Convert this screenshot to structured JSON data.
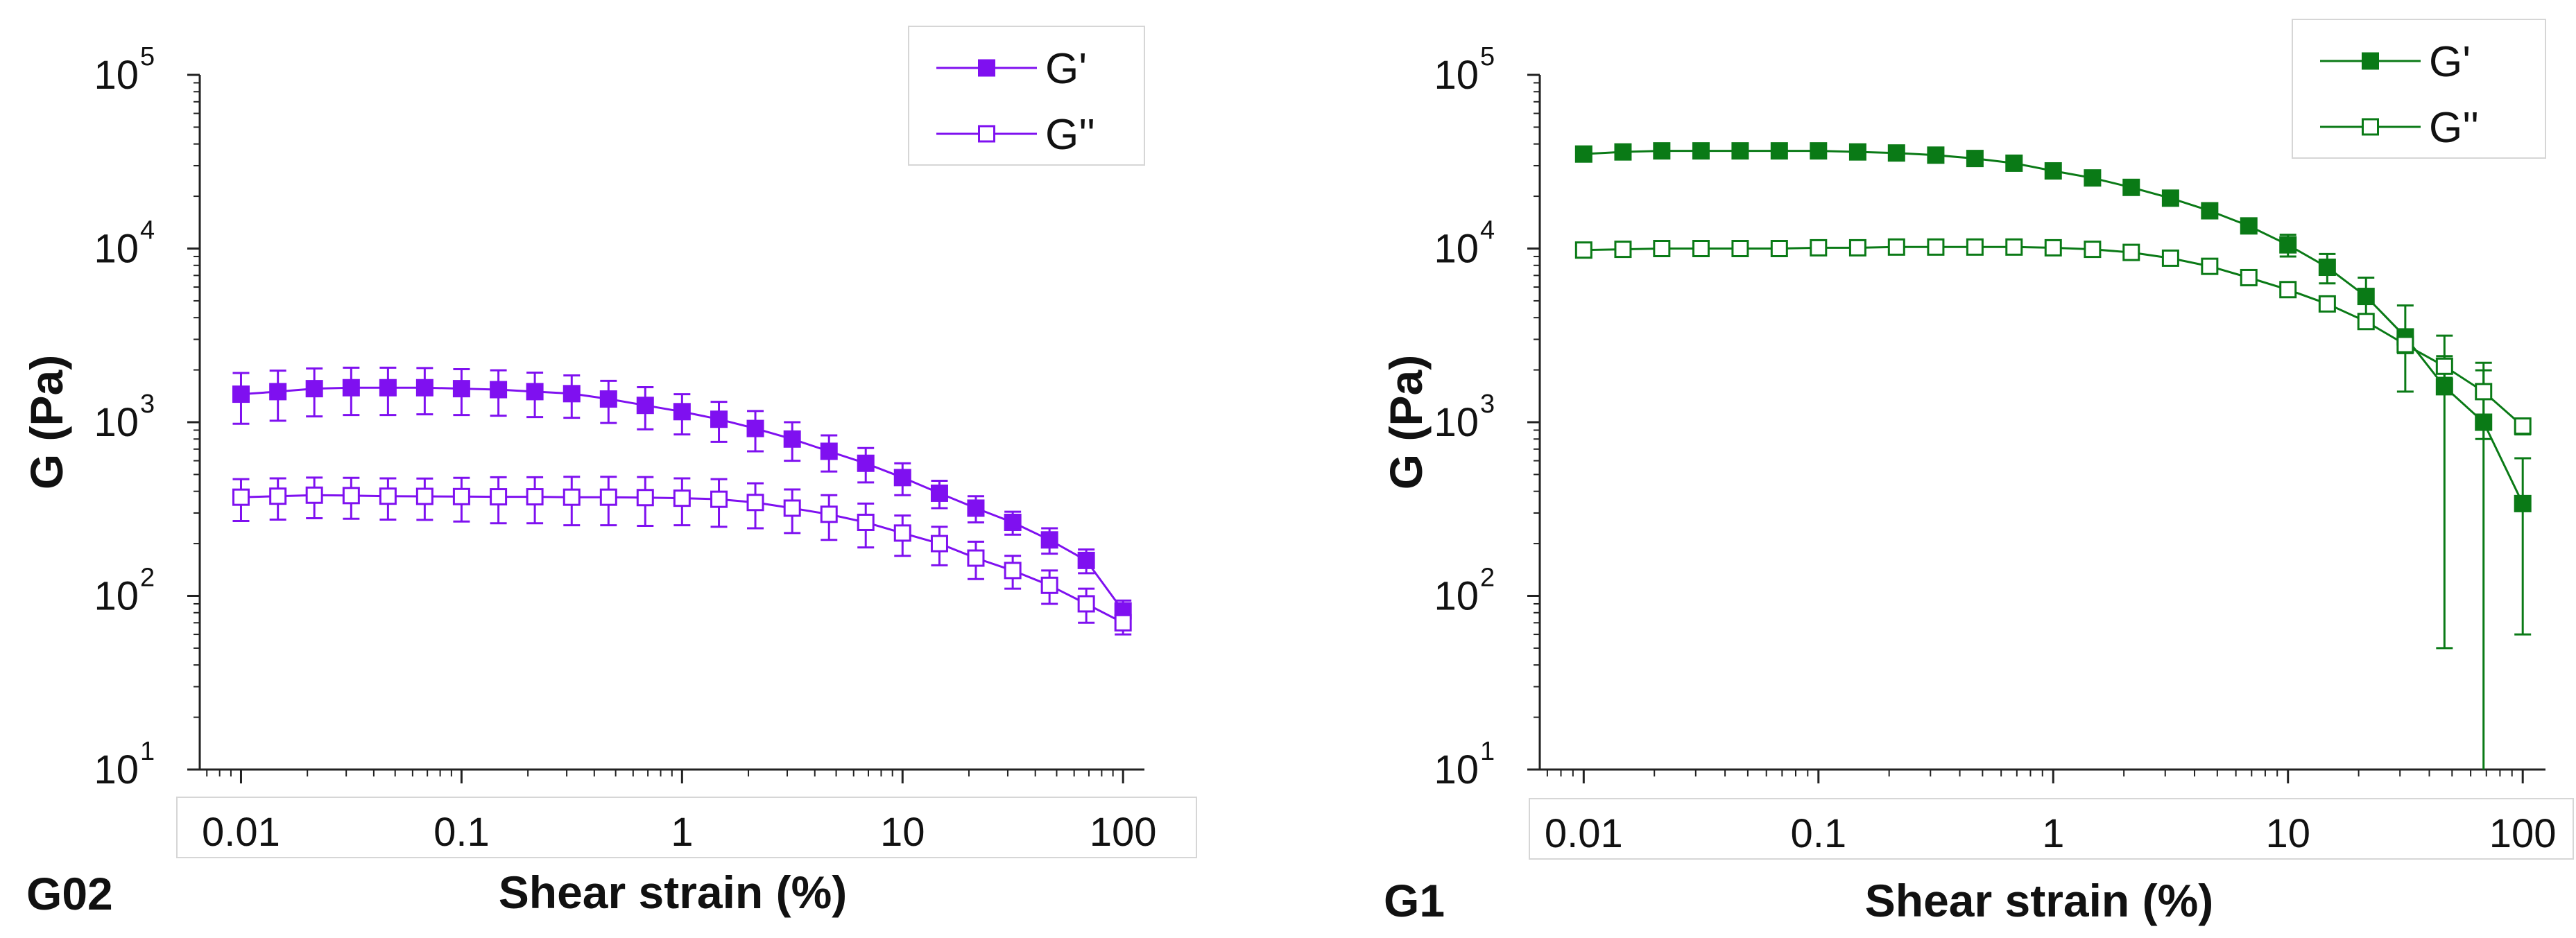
{
  "chart_data": [
    {
      "type": "line",
      "panel_label": "G02",
      "xlabel": "Shear strain (%)",
      "ylabel": "G (Pa)",
      "xscale": "log",
      "yscale": "log",
      "xlim": [
        0.0065,
        125
      ],
      "ylim": [
        10,
        100000
      ],
      "color": "#7f10f0",
      "x_ticks": [
        {
          "value": 0.01,
          "label": "0.01"
        },
        {
          "value": 0.1,
          "label": "0.1"
        },
        {
          "value": 1,
          "label": "1"
        },
        {
          "value": 10,
          "label": "10"
        },
        {
          "value": 100,
          "label": "100"
        }
      ],
      "y_ticks": [
        {
          "value": 10,
          "base": "10",
          "exp": "1"
        },
        {
          "value": 100,
          "base": "10",
          "exp": "2"
        },
        {
          "value": 1000,
          "base": "10",
          "exp": "3"
        },
        {
          "value": 10000,
          "base": "10",
          "exp": "4"
        },
        {
          "value": 100000,
          "base": "10",
          "exp": "5"
        }
      ],
      "legend_position": "top-right",
      "x": [
        0.01,
        0.0147,
        0.0215,
        0.0316,
        0.0464,
        0.0681,
        0.1,
        0.147,
        0.215,
        0.316,
        0.464,
        0.681,
        1,
        1.47,
        2.15,
        3.16,
        4.64,
        6.81,
        10,
        14.7,
        21.5,
        31.6,
        46.4,
        68.1,
        100
      ],
      "series": [
        {
          "name": "G'",
          "marker": "filled-square",
          "values": [
            1450,
            1500,
            1560,
            1580,
            1580,
            1580,
            1560,
            1540,
            1500,
            1460,
            1360,
            1250,
            1150,
            1040,
            920,
            800,
            680,
            580,
            480,
            390,
            320,
            265,
            210,
            160,
            82
          ],
          "err": [
            470,
            480,
            480,
            480,
            480,
            470,
            460,
            450,
            430,
            400,
            370,
            340,
            300,
            270,
            240,
            200,
            160,
            130,
            100,
            70,
            55,
            40,
            35,
            25,
            12
          ]
        },
        {
          "name": "G''",
          "marker": "open-square",
          "values": [
            370,
            375,
            380,
            378,
            375,
            374,
            373,
            372,
            372,
            370,
            370,
            368,
            365,
            360,
            345,
            320,
            295,
            265,
            230,
            200,
            165,
            140,
            115,
            90,
            70
          ],
          "err": [
            100,
            100,
            100,
            100,
            100,
            100,
            105,
            110,
            110,
            115,
            115,
            115,
            110,
            110,
            100,
            90,
            85,
            75,
            60,
            50,
            40,
            30,
            25,
            20,
            10
          ]
        }
      ]
    },
    {
      "type": "line",
      "panel_label": "G1",
      "xlabel": "Shear strain (%)",
      "ylabel": "G (Pa)",
      "xscale": "log",
      "yscale": "log",
      "xlim": [
        0.0065,
        125
      ],
      "ylim": [
        10,
        100000
      ],
      "color": "#0a7a16",
      "x_ticks": [
        {
          "value": 0.01,
          "label": "0.01"
        },
        {
          "value": 0.1,
          "label": "0.1"
        },
        {
          "value": 1,
          "label": "1"
        },
        {
          "value": 10,
          "label": "10"
        },
        {
          "value": 100,
          "label": "100"
        }
      ],
      "y_ticks": [
        {
          "value": 10,
          "base": "10",
          "exp": "1"
        },
        {
          "value": 100,
          "base": "10",
          "exp": "2"
        },
        {
          "value": 1000,
          "base": "10",
          "exp": "3"
        },
        {
          "value": 10000,
          "base": "10",
          "exp": "4"
        },
        {
          "value": 100000,
          "base": "10",
          "exp": "5"
        }
      ],
      "legend_position": "top-right",
      "x": [
        0.01,
        0.0147,
        0.0215,
        0.0316,
        0.0464,
        0.0681,
        0.1,
        0.147,
        0.215,
        0.316,
        0.464,
        0.681,
        1,
        1.47,
        2.15,
        3.16,
        4.64,
        6.81,
        10,
        14.7,
        21.5,
        31.6,
        46.4,
        68.1,
        100
      ],
      "series": [
        {
          "name": "G'",
          "marker": "filled-square",
          "values": [
            35000,
            36000,
            36500,
            36500,
            36500,
            36500,
            36500,
            36000,
            35500,
            34500,
            33000,
            31000,
            28000,
            25500,
            22500,
            19500,
            16500,
            13500,
            10500,
            7800,
            5300,
            3100,
            1600,
            1000,
            340
          ],
          "err": [
            1200,
            1200,
            1200,
            1200,
            1200,
            1200,
            1200,
            1200,
            1200,
            1200,
            1200,
            1200,
            1200,
            1200,
            1200,
            1100,
            1000,
            1000,
            1500,
            1500,
            1500,
            1600,
            1550,
            990,
            280
          ]
        },
        {
          "name": "G''",
          "marker": "open-square",
          "values": [
            9800,
            9900,
            10000,
            10000,
            10000,
            10000,
            10100,
            10100,
            10200,
            10200,
            10200,
            10200,
            10100,
            9900,
            9500,
            8800,
            7900,
            6800,
            5800,
            4800,
            3800,
            2800,
            2100,
            1500,
            950
          ],
          "err": [
            300,
            300,
            300,
            300,
            300,
            300,
            300,
            300,
            300,
            300,
            300,
            300,
            300,
            300,
            300,
            300,
            300,
            300,
            300,
            300,
            300,
            300,
            300,
            700,
            100
          ]
        }
      ]
    }
  ]
}
